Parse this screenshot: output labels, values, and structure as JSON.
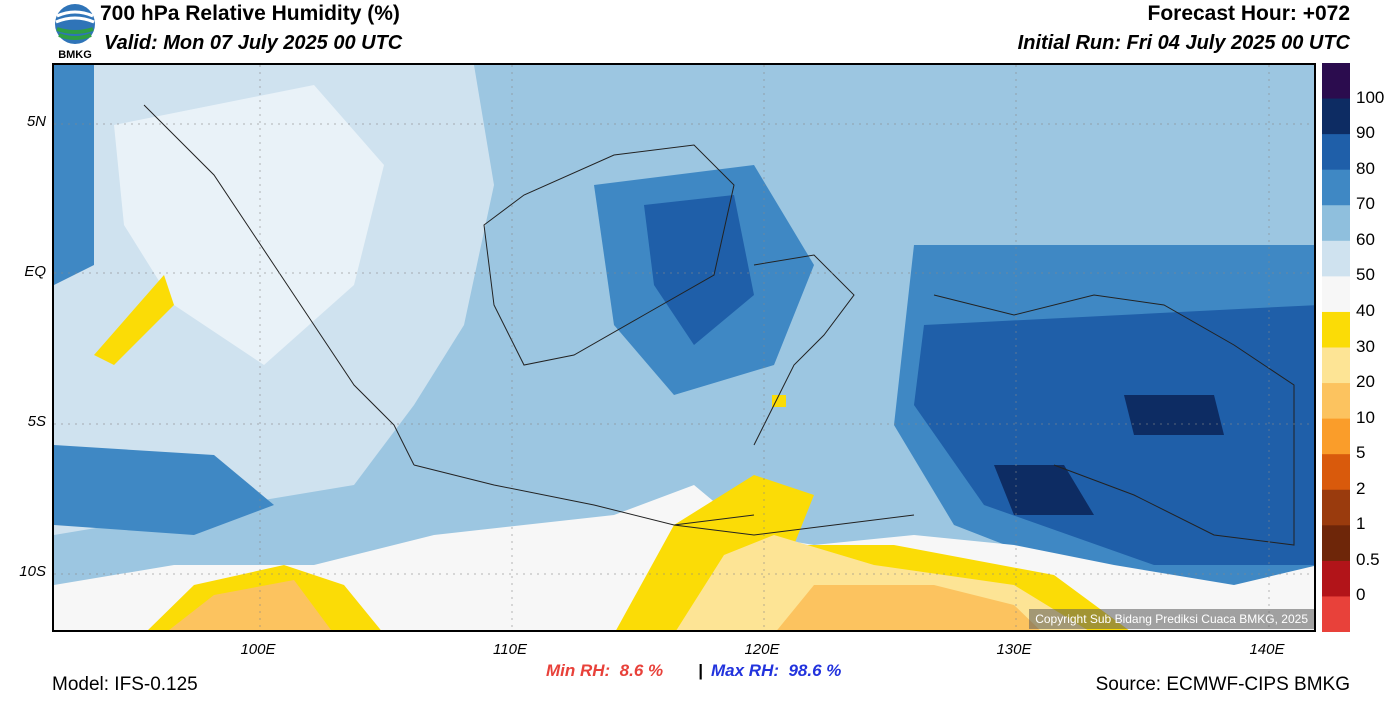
{
  "header": {
    "title": "700 hPa Relative Humidity (%)",
    "valid": "Valid: Mon 07 July 2025 00 UTC",
    "forecast_hour": "Forecast Hour: +072",
    "initial_run": "Initial Run: Fri 04 July 2025 00 UTC",
    "logo_text": "BMKG"
  },
  "map": {
    "lat_labels": [
      "5N",
      "EQ",
      "5S",
      "10S"
    ],
    "lon_labels": [
      "100E",
      "110E",
      "120E",
      "130E",
      "140E"
    ],
    "copyright": "Copyright Sub Bidang Prediksi Cuaca BMKG, 2025"
  },
  "colorbar": {
    "labels": [
      "100",
      "90",
      "80",
      "70",
      "60",
      "50",
      "40",
      "30",
      "20",
      "10",
      "5",
      "2",
      "1",
      "0.5",
      "0"
    ],
    "colors": [
      "#2b0c4e",
      "#0d2c63",
      "#1f5fa9",
      "#3f88c4",
      "#8fbfdd",
      "#cfe2ef",
      "#f7f7f7",
      "#fbdc06",
      "#fde495",
      "#fcc35f",
      "#fa9d2a",
      "#d95a0c",
      "#9a3b0d",
      "#6e2609",
      "#b21419",
      "#e8413a"
    ]
  },
  "stats": {
    "min_label": "Min RH:",
    "min_value": "8.6 %",
    "separator": "|",
    "max_label": "Max RH:",
    "max_value": "98.6 %",
    "min_color": "#e8413a",
    "max_color": "#2233dd"
  },
  "footer": {
    "model": "Model: IFS-0.125",
    "source": "Source: ECMWF-CIPS BMKG"
  }
}
